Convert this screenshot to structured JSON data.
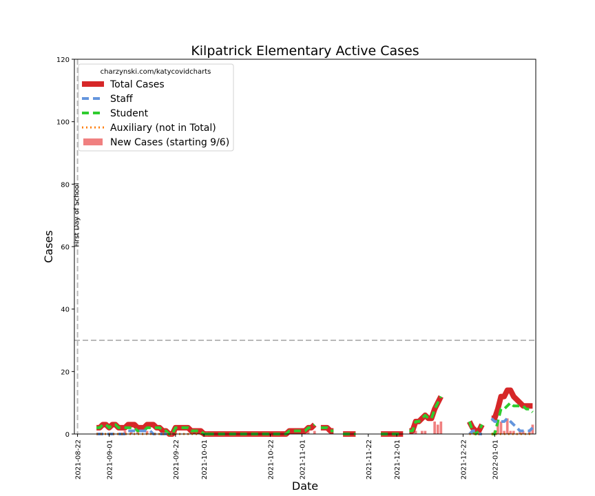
{
  "chart_data": {
    "type": "line",
    "title": "Kilpatrick Elementary Active Cases",
    "xlabel": "Date",
    "ylabel": "Cases",
    "ylim": [
      0,
      120
    ],
    "xlim": [
      "2021-08-21",
      "2022-01-14"
    ],
    "y_ticks": [
      0,
      20,
      40,
      60,
      80,
      100,
      120
    ],
    "x_ticks": [
      "2021-08-22",
      "2021-09-01",
      "2021-09-22",
      "2021-10-01",
      "2021-10-22",
      "2021-11-01",
      "2021-11-22",
      "2021-12-01",
      "2021-12-22",
      "2022-01-01"
    ],
    "grid": false,
    "legend_placement": "top-left",
    "legend_title": "charzynski.com/katycovidcharts",
    "reference_lines": {
      "threshold": 30,
      "first_day": "2021-08-22",
      "first_day_label": "First Day of School"
    },
    "series": [
      {
        "name": "Total Cases",
        "color": "#d62728",
        "style": "solid-thick",
        "segments": [
          [
            [
              "2021-08-28",
              2
            ],
            [
              "2021-08-29",
              2
            ],
            [
              "2021-08-30",
              3
            ],
            [
              "2021-08-31",
              3
            ],
            [
              "2021-09-01",
              2
            ],
            [
              "2021-09-02",
              3
            ],
            [
              "2021-09-03",
              3
            ],
            [
              "2021-09-04",
              2
            ],
            [
              "2021-09-05",
              2
            ],
            [
              "2021-09-06",
              2
            ],
            [
              "2021-09-07",
              3
            ],
            [
              "2021-09-08",
              3
            ],
            [
              "2021-09-09",
              3
            ],
            [
              "2021-09-10",
              2
            ],
            [
              "2021-09-11",
              2
            ],
            [
              "2021-09-12",
              2
            ],
            [
              "2021-09-13",
              3
            ],
            [
              "2021-09-14",
              3
            ],
            [
              "2021-09-15",
              3
            ],
            [
              "2021-09-16",
              2
            ],
            [
              "2021-09-17",
              2
            ],
            [
              "2021-09-18",
              1
            ],
            [
              "2021-09-19",
              1
            ],
            [
              "2021-09-20",
              0
            ],
            [
              "2021-09-21",
              0
            ],
            [
              "2021-09-22",
              2
            ],
            [
              "2021-09-23",
              2
            ],
            [
              "2021-09-24",
              2
            ],
            [
              "2021-09-25",
              2
            ],
            [
              "2021-09-26",
              2
            ],
            [
              "2021-09-27",
              1
            ],
            [
              "2021-09-28",
              1
            ],
            [
              "2021-09-29",
              1
            ],
            [
              "2021-09-30",
              1
            ],
            [
              "2021-10-01",
              0
            ],
            [
              "2021-10-02",
              0
            ]
          ],
          [
            [
              "2021-10-02",
              0
            ],
            [
              "2021-10-10",
              0
            ],
            [
              "2021-10-20",
              0
            ],
            [
              "2021-10-27",
              0
            ],
            [
              "2021-10-28",
              1
            ],
            [
              "2021-10-29",
              1
            ],
            [
              "2021-10-30",
              1
            ],
            [
              "2021-11-01",
              1
            ],
            [
              "2021-11-02",
              1
            ],
            [
              "2021-11-03",
              2
            ],
            [
              "2021-11-04",
              2
            ],
            [
              "2021-11-05",
              3
            ]
          ],
          [
            [
              "2021-11-07",
              2
            ],
            [
              "2021-11-08",
              2
            ],
            [
              "2021-11-09",
              2
            ],
            [
              "2021-11-10",
              1
            ],
            [
              "2021-11-11",
              1
            ]
          ],
          [
            [
              "2021-11-14",
              0
            ],
            [
              "2021-11-15",
              0
            ],
            [
              "2021-11-16",
              0
            ],
            [
              "2021-11-17",
              0
            ],
            [
              "2021-11-18",
              0
            ]
          ],
          [
            [
              "2021-11-26",
              0
            ],
            [
              "2021-12-01",
              0
            ],
            [
              "2021-12-03",
              0
            ]
          ],
          [
            [
              "2021-12-05",
              1
            ],
            [
              "2021-12-06",
              1
            ],
            [
              "2021-12-07",
              4
            ],
            [
              "2021-12-08",
              4
            ],
            [
              "2021-12-09",
              5
            ],
            [
              "2021-12-10",
              6
            ],
            [
              "2021-12-11",
              5
            ],
            [
              "2021-12-12",
              5
            ],
            [
              "2021-12-13",
              8
            ],
            [
              "2021-12-14",
              10
            ],
            [
              "2021-12-15",
              12
            ]
          ],
          [
            [
              "2021-12-24",
              4
            ],
            [
              "2021-12-25",
              2
            ],
            [
              "2021-12-26",
              1
            ],
            [
              "2021-12-27",
              1
            ],
            [
              "2021-12-28",
              3
            ]
          ],
          [
            [
              "2021-12-31",
              5
            ],
            [
              "2022-01-01",
              5
            ],
            [
              "2022-01-02",
              8
            ],
            [
              "2022-01-03",
              12
            ],
            [
              "2022-01-04",
              12
            ],
            [
              "2022-01-05",
              14
            ],
            [
              "2022-01-06",
              14
            ],
            [
              "2022-01-07",
              12
            ],
            [
              "2022-01-08",
              11
            ],
            [
              "2022-01-09",
              10
            ],
            [
              "2022-01-10",
              9
            ],
            [
              "2022-01-11",
              9
            ],
            [
              "2022-01-12",
              9
            ],
            [
              "2022-01-13",
              9
            ]
          ]
        ]
      },
      {
        "name": "Staff",
        "color": "#6495dd",
        "style": "dashed",
        "segments": [
          [
            [
              "2021-08-28",
              0
            ],
            [
              "2021-09-05",
              0
            ],
            [
              "2021-09-06",
              0
            ],
            [
              "2021-09-07",
              1
            ],
            [
              "2021-09-08",
              1
            ],
            [
              "2021-09-09",
              1
            ],
            [
              "2021-09-10",
              1
            ],
            [
              "2021-09-11",
              1
            ],
            [
              "2021-09-12",
              1
            ],
            [
              "2021-09-13",
              1
            ],
            [
              "2021-09-14",
              1
            ],
            [
              "2021-09-15",
              0
            ],
            [
              "2021-09-16",
              0
            ],
            [
              "2021-09-17",
              0
            ],
            [
              "2021-09-18",
              0
            ],
            [
              "2021-09-21",
              0
            ]
          ],
          [
            [
              "2021-12-24",
              0
            ],
            [
              "2021-12-25",
              1
            ],
            [
              "2021-12-26",
              1
            ],
            [
              "2021-12-27",
              0
            ],
            [
              "2021-12-28",
              0
            ]
          ],
          [
            [
              "2021-12-31",
              5
            ],
            [
              "2022-01-01",
              4
            ],
            [
              "2022-01-02",
              4
            ],
            [
              "2022-01-03",
              4
            ],
            [
              "2022-01-04",
              4
            ],
            [
              "2022-01-05",
              5
            ],
            [
              "2022-01-06",
              4
            ],
            [
              "2022-01-07",
              3
            ],
            [
              "2022-01-08",
              2
            ],
            [
              "2022-01-09",
              1
            ],
            [
              "2022-01-10",
              1
            ],
            [
              "2022-01-11",
              1
            ],
            [
              "2022-01-12",
              1
            ],
            [
              "2022-01-13",
              2
            ]
          ]
        ]
      },
      {
        "name": "Student",
        "color": "#2ecc2e",
        "style": "dashed",
        "segments": [
          [
            [
              "2021-08-28",
              2
            ],
            [
              "2021-08-29",
              2
            ],
            [
              "2021-08-30",
              3
            ],
            [
              "2021-08-31",
              3
            ],
            [
              "2021-09-01",
              2
            ],
            [
              "2021-09-02",
              3
            ],
            [
              "2021-09-03",
              3
            ],
            [
              "2021-09-04",
              2
            ],
            [
              "2021-09-05",
              2
            ],
            [
              "2021-09-06",
              2
            ],
            [
              "2021-09-07",
              2
            ],
            [
              "2021-09-08",
              2
            ],
            [
              "2021-09-09",
              2
            ],
            [
              "2021-09-10",
              1
            ],
            [
              "2021-09-11",
              1
            ],
            [
              "2021-09-12",
              1
            ],
            [
              "2021-09-13",
              2
            ],
            [
              "2021-09-14",
              2
            ],
            [
              "2021-09-15",
              2
            ],
            [
              "2021-09-16",
              2
            ],
            [
              "2021-09-17",
              2
            ],
            [
              "2021-09-18",
              1
            ],
            [
              "2021-09-19",
              1
            ],
            [
              "2021-09-20",
              0
            ],
            [
              "2021-09-21",
              0
            ],
            [
              "2021-09-22",
              2
            ],
            [
              "2021-09-23",
              2
            ],
            [
              "2021-09-24",
              2
            ],
            [
              "2021-09-25",
              2
            ],
            [
              "2021-09-26",
              2
            ],
            [
              "2021-09-27",
              1
            ],
            [
              "2021-09-28",
              1
            ],
            [
              "2021-09-29",
              1
            ],
            [
              "2021-09-30",
              1
            ],
            [
              "2021-10-01",
              0
            ],
            [
              "2021-10-02",
              0
            ]
          ],
          [
            [
              "2021-10-02",
              0
            ],
            [
              "2021-10-10",
              0
            ],
            [
              "2021-10-20",
              0
            ],
            [
              "2021-10-27",
              0
            ],
            [
              "2021-10-28",
              1
            ],
            [
              "2021-10-29",
              1
            ],
            [
              "2021-10-30",
              1
            ],
            [
              "2021-11-01",
              1
            ],
            [
              "2021-11-02",
              1
            ],
            [
              "2021-11-03",
              2
            ],
            [
              "2021-11-04",
              2
            ],
            [
              "2021-11-05",
              3
            ]
          ],
          [
            [
              "2021-11-07",
              2
            ],
            [
              "2021-11-08",
              2
            ],
            [
              "2021-11-09",
              2
            ],
            [
              "2021-11-10",
              1
            ],
            [
              "2021-11-11",
              1
            ]
          ],
          [
            [
              "2021-11-14",
              0
            ],
            [
              "2021-11-18",
              0
            ]
          ],
          [
            [
              "2021-11-26",
              0
            ],
            [
              "2021-12-01",
              0
            ],
            [
              "2021-12-03",
              0
            ]
          ],
          [
            [
              "2021-12-05",
              1
            ],
            [
              "2021-12-06",
              1
            ],
            [
              "2021-12-07",
              4
            ],
            [
              "2021-12-08",
              4
            ],
            [
              "2021-12-09",
              5
            ],
            [
              "2021-12-10",
              6
            ],
            [
              "2021-12-11",
              5
            ],
            [
              "2021-12-12",
              5
            ],
            [
              "2021-12-13",
              8
            ],
            [
              "2021-12-14",
              10
            ],
            [
              "2021-12-15",
              12
            ]
          ],
          [
            [
              "2021-12-24",
              4
            ],
            [
              "2021-12-25",
              1
            ],
            [
              "2021-12-26",
              0
            ],
            [
              "2021-12-27",
              1
            ],
            [
              "2021-12-28",
              3
            ]
          ],
          [
            [
              "2021-12-31",
              0
            ],
            [
              "2022-01-01",
              0
            ],
            [
              "2022-01-02",
              4
            ],
            [
              "2022-01-03",
              8
            ],
            [
              "2022-01-04",
              8
            ],
            [
              "2022-01-05",
              9
            ],
            [
              "2022-01-06",
              10
            ],
            [
              "2022-01-07",
              9
            ],
            [
              "2022-01-08",
              9
            ],
            [
              "2022-01-09",
              9
            ],
            [
              "2022-01-10",
              9
            ],
            [
              "2022-01-11",
              8
            ],
            [
              "2022-01-12",
              8
            ],
            [
              "2022-01-13",
              7
            ]
          ]
        ]
      },
      {
        "name": "Auxiliary (not in Total)",
        "color": "#ff7f0e",
        "style": "dotted",
        "segments": [
          [
            [
              "2021-08-28",
              0
            ],
            [
              "2021-10-01",
              0
            ]
          ],
          [
            [
              "2021-12-24",
              0
            ],
            [
              "2021-12-28",
              0
            ]
          ],
          [
            [
              "2021-12-31",
              0
            ],
            [
              "2022-01-13",
              0
            ]
          ]
        ]
      },
      {
        "name": "New Cases (starting 9/6)",
        "color": "#f08080",
        "style": "bar",
        "points": [
          [
            "2021-09-06",
            1
          ],
          [
            "2021-09-08",
            1
          ],
          [
            "2021-09-10",
            1
          ],
          [
            "2021-09-13",
            1
          ],
          [
            "2021-09-22",
            1
          ],
          [
            "2021-11-03",
            1
          ],
          [
            "2021-11-05",
            1
          ],
          [
            "2021-12-07",
            1
          ],
          [
            "2021-12-09",
            1
          ],
          [
            "2021-12-10",
            1
          ],
          [
            "2021-12-13",
            4
          ],
          [
            "2021-12-14",
            3
          ],
          [
            "2021-12-15",
            4
          ],
          [
            "2021-12-25",
            1
          ],
          [
            "2022-01-01",
            1
          ],
          [
            "2022-01-02",
            4
          ],
          [
            "2022-01-03",
            4
          ],
          [
            "2022-01-04",
            1
          ],
          [
            "2022-01-05",
            5
          ],
          [
            "2022-01-06",
            1
          ],
          [
            "2022-01-07",
            1
          ],
          [
            "2022-01-09",
            1
          ],
          [
            "2022-01-10",
            1
          ],
          [
            "2022-01-12",
            1
          ],
          [
            "2022-01-13",
            3
          ]
        ]
      }
    ]
  }
}
